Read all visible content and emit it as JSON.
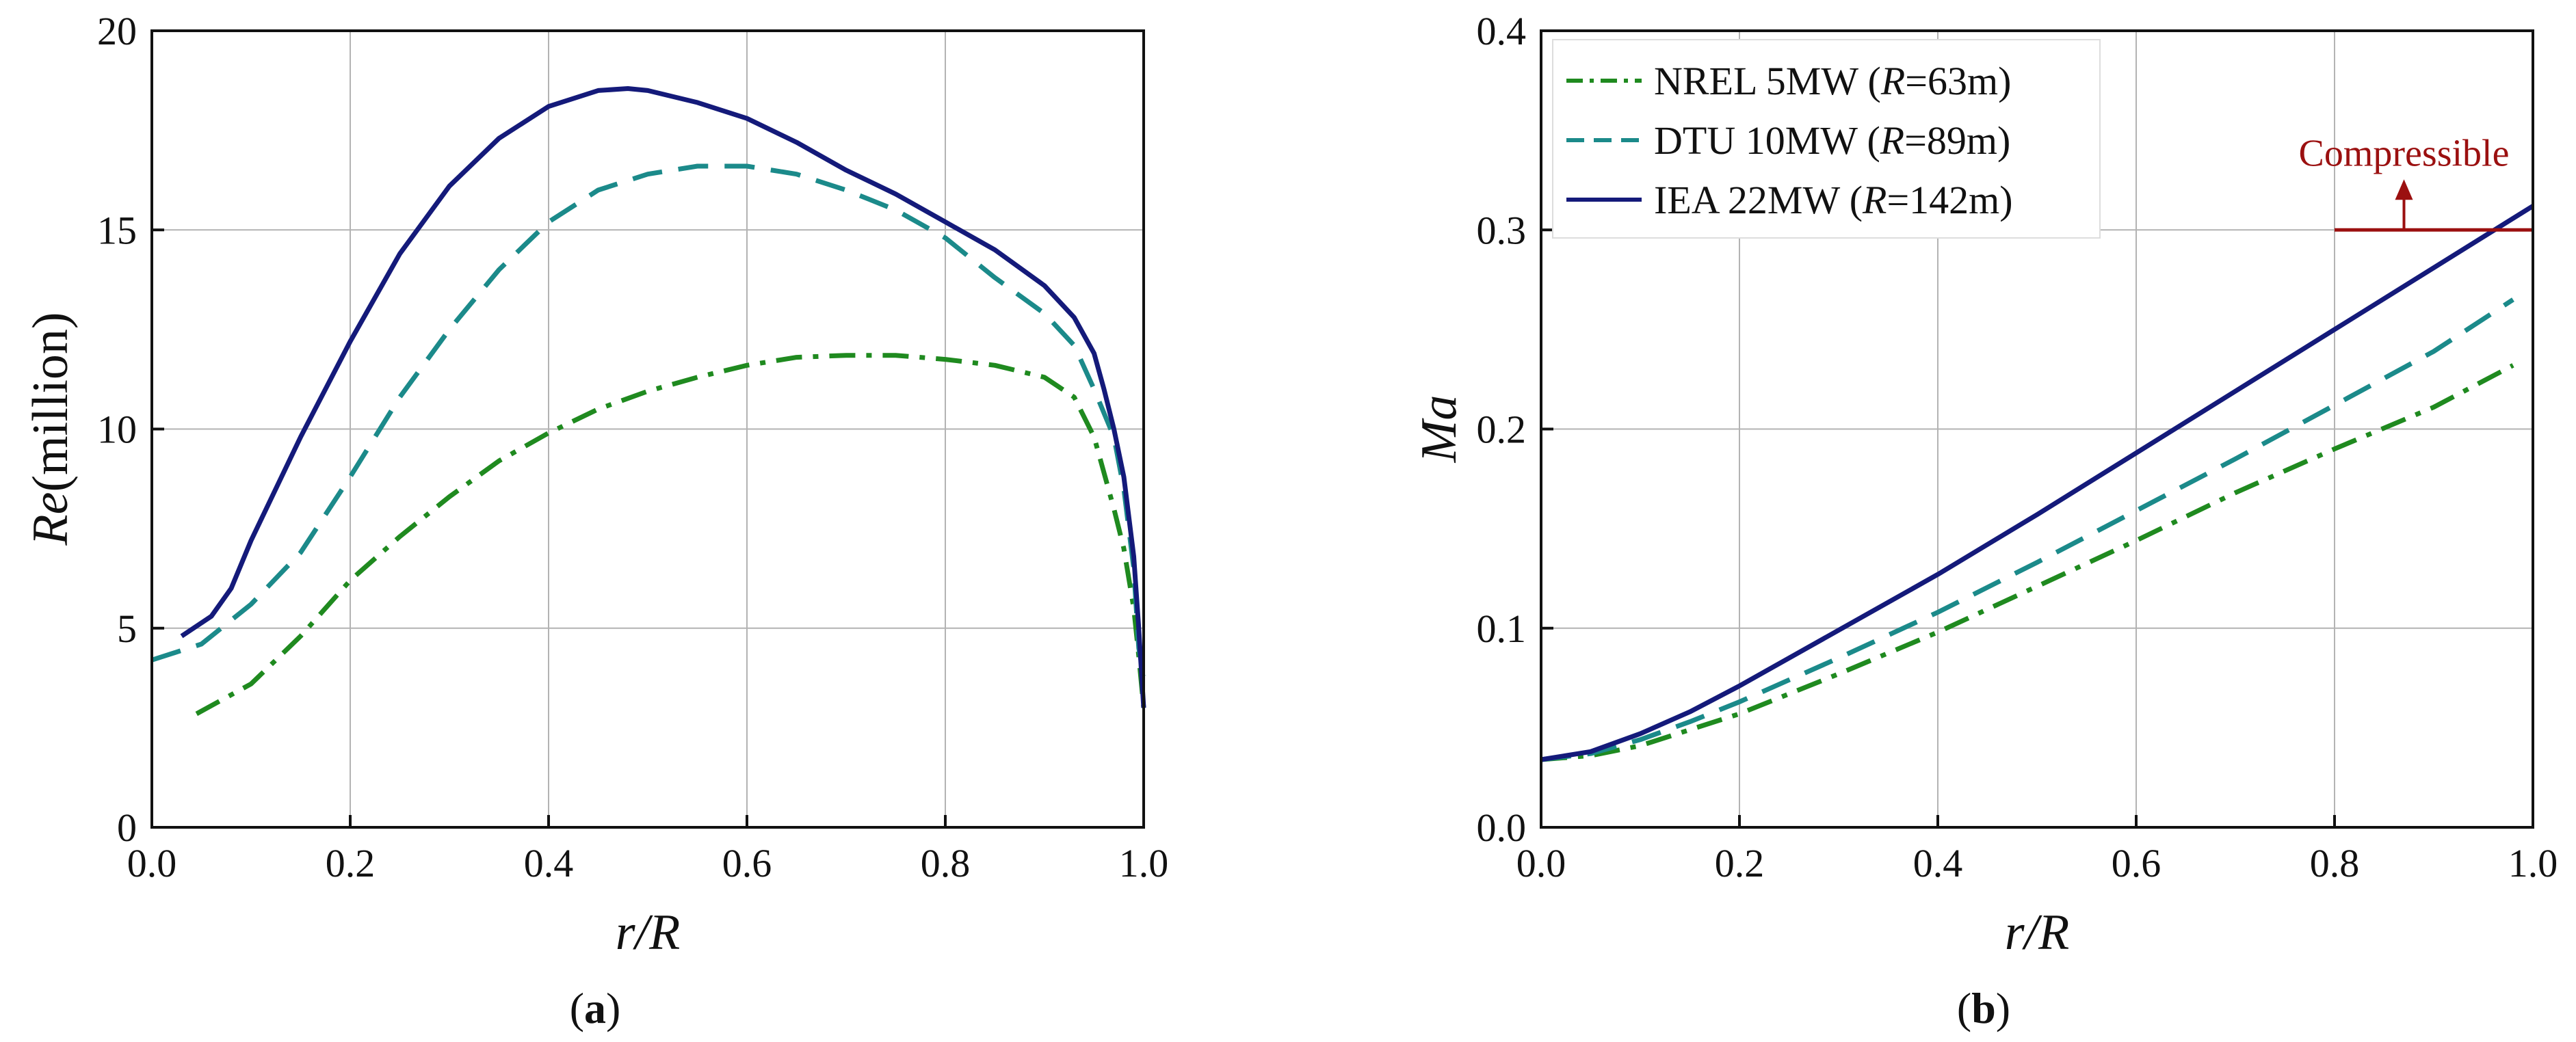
{
  "figure": {
    "panels": [
      "a",
      "b"
    ],
    "panel_labels": [
      {
        "open": "(",
        "letter": "a",
        "close": ")"
      },
      {
        "open": "(",
        "letter": "b",
        "close": ")"
      }
    ]
  },
  "colors": {
    "nrel": "#1f8a1f",
    "dtu": "#1b8a8a",
    "iea": "#141a7a",
    "compressible": "#9b1010",
    "grid": "#b3b3b3",
    "axis": "#111111"
  },
  "legend": {
    "entries": [
      {
        "key": "nrel",
        "prefix": "NREL 5MW (",
        "var": "R",
        "suffix": "=63m)"
      },
      {
        "key": "dtu",
        "prefix": "DTU 10MW (",
        "var": "R",
        "suffix": "=89m)"
      },
      {
        "key": "iea",
        "prefix": "IEA 22MW (",
        "var": "R",
        "suffix": "=142m)"
      }
    ]
  },
  "chart_data": [
    {
      "id": "a",
      "type": "line",
      "title": "",
      "xlabel": "r/R",
      "ylabel": {
        "italic": "Re",
        "plain": "(million)"
      },
      "xlim": [
        0.0,
        1.0
      ],
      "ylim": [
        0,
        20
      ],
      "xticks": [
        "0.0",
        "0.2",
        "0.4",
        "0.6",
        "0.8",
        "1.0"
      ],
      "yticks": [
        "0",
        "5",
        "10",
        "15",
        "20"
      ],
      "grid": true,
      "series": [
        {
          "name": "NREL 5MW (R=63m)",
          "key": "nrel",
          "dash": "dashdot",
          "x": [
            0.045,
            0.1,
            0.15,
            0.2,
            0.25,
            0.3,
            0.35,
            0.4,
            0.45,
            0.5,
            0.55,
            0.6,
            0.65,
            0.7,
            0.75,
            0.8,
            0.85,
            0.9,
            0.93,
            0.95,
            0.97,
            0.98,
            0.99,
            0.995,
            1.0
          ],
          "y": [
            2.85,
            3.6,
            4.8,
            6.2,
            7.3,
            8.3,
            9.2,
            9.9,
            10.5,
            10.95,
            11.3,
            11.6,
            11.8,
            11.85,
            11.85,
            11.75,
            11.6,
            11.3,
            10.8,
            9.8,
            8.0,
            7.0,
            5.5,
            4.3,
            3.0
          ]
        },
        {
          "name": "DTU 10MW (R=89m)",
          "key": "dtu",
          "dash": "dash",
          "x": [
            0.0,
            0.05,
            0.1,
            0.15,
            0.2,
            0.25,
            0.3,
            0.35,
            0.4,
            0.45,
            0.5,
            0.55,
            0.6,
            0.65,
            0.7,
            0.75,
            0.8,
            0.85,
            0.9,
            0.93,
            0.95,
            0.97,
            0.98,
            0.99,
            0.995,
            1.0
          ],
          "y": [
            4.2,
            4.6,
            5.6,
            6.9,
            8.8,
            10.8,
            12.5,
            14.0,
            15.2,
            16.0,
            16.4,
            16.6,
            16.6,
            16.4,
            16.0,
            15.5,
            14.8,
            13.8,
            12.9,
            12.1,
            11.0,
            9.8,
            8.5,
            6.5,
            4.5,
            3.8
          ]
        },
        {
          "name": "IEA 22MW (R=142m)",
          "key": "iea",
          "dash": "solid",
          "x": [
            0.03,
            0.06,
            0.08,
            0.1,
            0.15,
            0.2,
            0.25,
            0.3,
            0.35,
            0.4,
            0.45,
            0.48,
            0.5,
            0.55,
            0.6,
            0.65,
            0.7,
            0.75,
            0.8,
            0.85,
            0.9,
            0.93,
            0.95,
            0.96,
            0.97,
            0.98,
            0.99,
            0.995,
            1.0
          ],
          "y": [
            4.8,
            5.3,
            6.0,
            7.2,
            9.8,
            12.2,
            14.4,
            16.1,
            17.3,
            18.1,
            18.5,
            18.55,
            18.5,
            18.2,
            17.8,
            17.2,
            16.5,
            15.9,
            15.2,
            14.5,
            13.6,
            12.8,
            11.9,
            11.0,
            10.0,
            8.8,
            6.8,
            5.0,
            3.0
          ]
        }
      ]
    },
    {
      "id": "b",
      "type": "line",
      "title": "",
      "xlabel": "r/R",
      "ylabel": {
        "italic": "Ma",
        "plain": ""
      },
      "xlim": [
        0.0,
        1.0
      ],
      "ylim": [
        0.0,
        0.4
      ],
      "xticks": [
        "0.0",
        "0.2",
        "0.4",
        "0.6",
        "0.8",
        "1.0"
      ],
      "yticks": [
        "0.0",
        "0.1",
        "0.2",
        "0.3",
        "0.4"
      ],
      "grid": true,
      "annotation": {
        "text": "Compressible",
        "threshold": 0.3,
        "x_from": 0.8,
        "x_to": 1.0,
        "arrow_x": 0.87
      },
      "series": [
        {
          "name": "NREL 5MW (R=63m)",
          "key": "nrel",
          "dash": "dashdot",
          "x": [
            0.0,
            0.05,
            0.1,
            0.15,
            0.2,
            0.3,
            0.4,
            0.5,
            0.6,
            0.7,
            0.8,
            0.9,
            0.98
          ],
          "y": [
            0.034,
            0.036,
            0.041,
            0.049,
            0.057,
            0.077,
            0.098,
            0.121,
            0.144,
            0.168,
            0.19,
            0.211,
            0.232
          ]
        },
        {
          "name": "DTU 10MW (R=89m)",
          "key": "dtu",
          "dash": "dash",
          "x": [
            0.0,
            0.05,
            0.1,
            0.15,
            0.2,
            0.3,
            0.4,
            0.5,
            0.6,
            0.7,
            0.8,
            0.9,
            0.98
          ],
          "y": [
            0.034,
            0.037,
            0.044,
            0.053,
            0.063,
            0.085,
            0.108,
            0.133,
            0.159,
            0.185,
            0.212,
            0.239,
            0.265
          ]
        },
        {
          "name": "IEA 22MW (R=142m)",
          "key": "iea",
          "dash": "solid",
          "x": [
            0.0,
            0.05,
            0.1,
            0.15,
            0.2,
            0.3,
            0.4,
            0.5,
            0.6,
            0.7,
            0.8,
            0.9,
            1.0
          ],
          "y": [
            0.034,
            0.038,
            0.047,
            0.058,
            0.071,
            0.099,
            0.127,
            0.157,
            0.188,
            0.219,
            0.25,
            0.281,
            0.312
          ]
        }
      ]
    }
  ]
}
